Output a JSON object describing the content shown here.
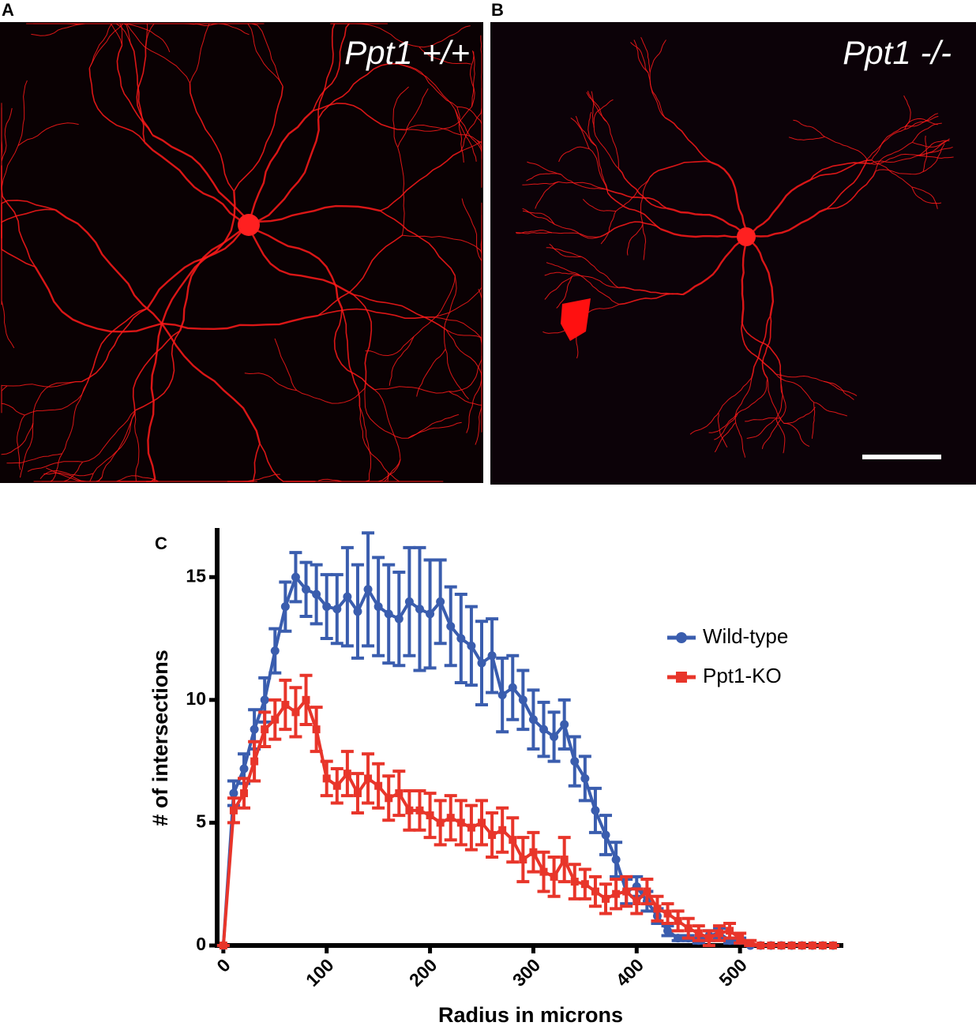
{
  "panels": [
    {
      "label": "A",
      "caption": "Ppt1 +/+"
    },
    {
      "label": "B",
      "caption": "Ppt1 -/-"
    }
  ],
  "chart_data": {
    "type": "line",
    "panel_label": "C",
    "xlabel": "Radius in microns",
    "ylabel": "# of intersections",
    "x": [
      0,
      10,
      20,
      30,
      40,
      50,
      60,
      70,
      80,
      90,
      100,
      110,
      120,
      130,
      140,
      150,
      160,
      170,
      180,
      190,
      200,
      210,
      220,
      230,
      240,
      250,
      260,
      270,
      280,
      290,
      300,
      310,
      320,
      330,
      340,
      350,
      360,
      370,
      380,
      390,
      400,
      410,
      420,
      430,
      440,
      450,
      460,
      470,
      480,
      490,
      500,
      510,
      520,
      530,
      540,
      550,
      560,
      570,
      580,
      590
    ],
    "series": [
      {
        "name": "Wild-type",
        "color": "#3a5dae",
        "marker": "circle",
        "values": [
          0,
          6.2,
          7.2,
          8.8,
          10,
          12,
          13.8,
          15,
          14.5,
          14.3,
          13.8,
          13.7,
          14.2,
          13.6,
          14.5,
          13.8,
          13.5,
          13.3,
          14,
          13.7,
          13.5,
          14,
          13,
          12.5,
          12.2,
          11.5,
          11.8,
          10.2,
          10.5,
          10,
          9.2,
          8.8,
          8.5,
          9,
          7.5,
          6.8,
          5.5,
          4.5,
          3.5,
          2.2,
          2.4,
          1.8,
          1.2,
          0.6,
          0.3,
          0.3,
          0.2,
          0.4,
          0.5,
          0.2,
          0.2,
          0,
          0,
          0,
          0,
          0,
          0,
          0,
          0,
          0
        ],
        "errors": [
          0,
          0.5,
          0.6,
          0.8,
          0.9,
          0.9,
          1,
          1,
          1.1,
          1.2,
          1.3,
          1.4,
          2,
          1.9,
          2.3,
          2,
          2,
          1.9,
          2.2,
          2.5,
          2.2,
          1.7,
          1.6,
          1.8,
          1.6,
          1.7,
          1.5,
          1.5,
          1.3,
          1.2,
          1.2,
          1.1,
          1,
          1,
          1,
          0.9,
          0.9,
          0.8,
          0.7,
          0.5,
          0.4,
          0.4,
          0.3,
          0.2,
          0.1,
          0.1,
          0.1,
          0.2,
          0.2,
          0.1,
          0.1,
          0,
          0,
          0,
          0,
          0,
          0,
          0,
          0,
          0
        ]
      },
      {
        "name": "Ppt1-KO",
        "color": "#e8352a",
        "marker": "square",
        "values": [
          0,
          5.5,
          6.2,
          7.5,
          8.8,
          9.2,
          9.8,
          9.5,
          10,
          8.8,
          6.8,
          6.5,
          7,
          6.2,
          6.8,
          6.5,
          6,
          6.2,
          5.5,
          5.5,
          5.3,
          5,
          5.2,
          5,
          4.8,
          5,
          4.5,
          4.7,
          4.3,
          3.5,
          3.8,
          3,
          2.8,
          3.5,
          2.6,
          2.5,
          2.2,
          1.9,
          2.1,
          2.2,
          1.8,
          2.2,
          1.5,
          1.3,
          1,
          0.7,
          0.5,
          0.3,
          0.5,
          0.6,
          0.3,
          0.1,
          0,
          0,
          0,
          0,
          0,
          0,
          0,
          0
        ],
        "errors": [
          0,
          0.5,
          0.6,
          0.8,
          0.7,
          0.8,
          1,
          1,
          1,
          0.9,
          0.7,
          0.7,
          0.9,
          0.8,
          1,
          0.9,
          0.9,
          0.9,
          0.8,
          0.8,
          0.9,
          0.9,
          0.9,
          0.9,
          0.9,
          0.9,
          0.9,
          0.9,
          0.9,
          0.9,
          0.8,
          0.8,
          0.8,
          0.9,
          0.7,
          0.6,
          0.6,
          0.6,
          0.6,
          0.6,
          0.5,
          0.5,
          0.5,
          0.4,
          0.4,
          0.4,
          0.3,
          0.3,
          0.3,
          0.3,
          0.2,
          0.1,
          0,
          0,
          0,
          0,
          0,
          0,
          0,
          0
        ]
      }
    ],
    "xlim": [
      -6,
      600
    ],
    "ylim": [
      0,
      17
    ],
    "xticks": [
      0,
      100,
      200,
      300,
      400,
      500
    ],
    "yticks": [
      0,
      5,
      10,
      15
    ],
    "legend": "right"
  }
}
